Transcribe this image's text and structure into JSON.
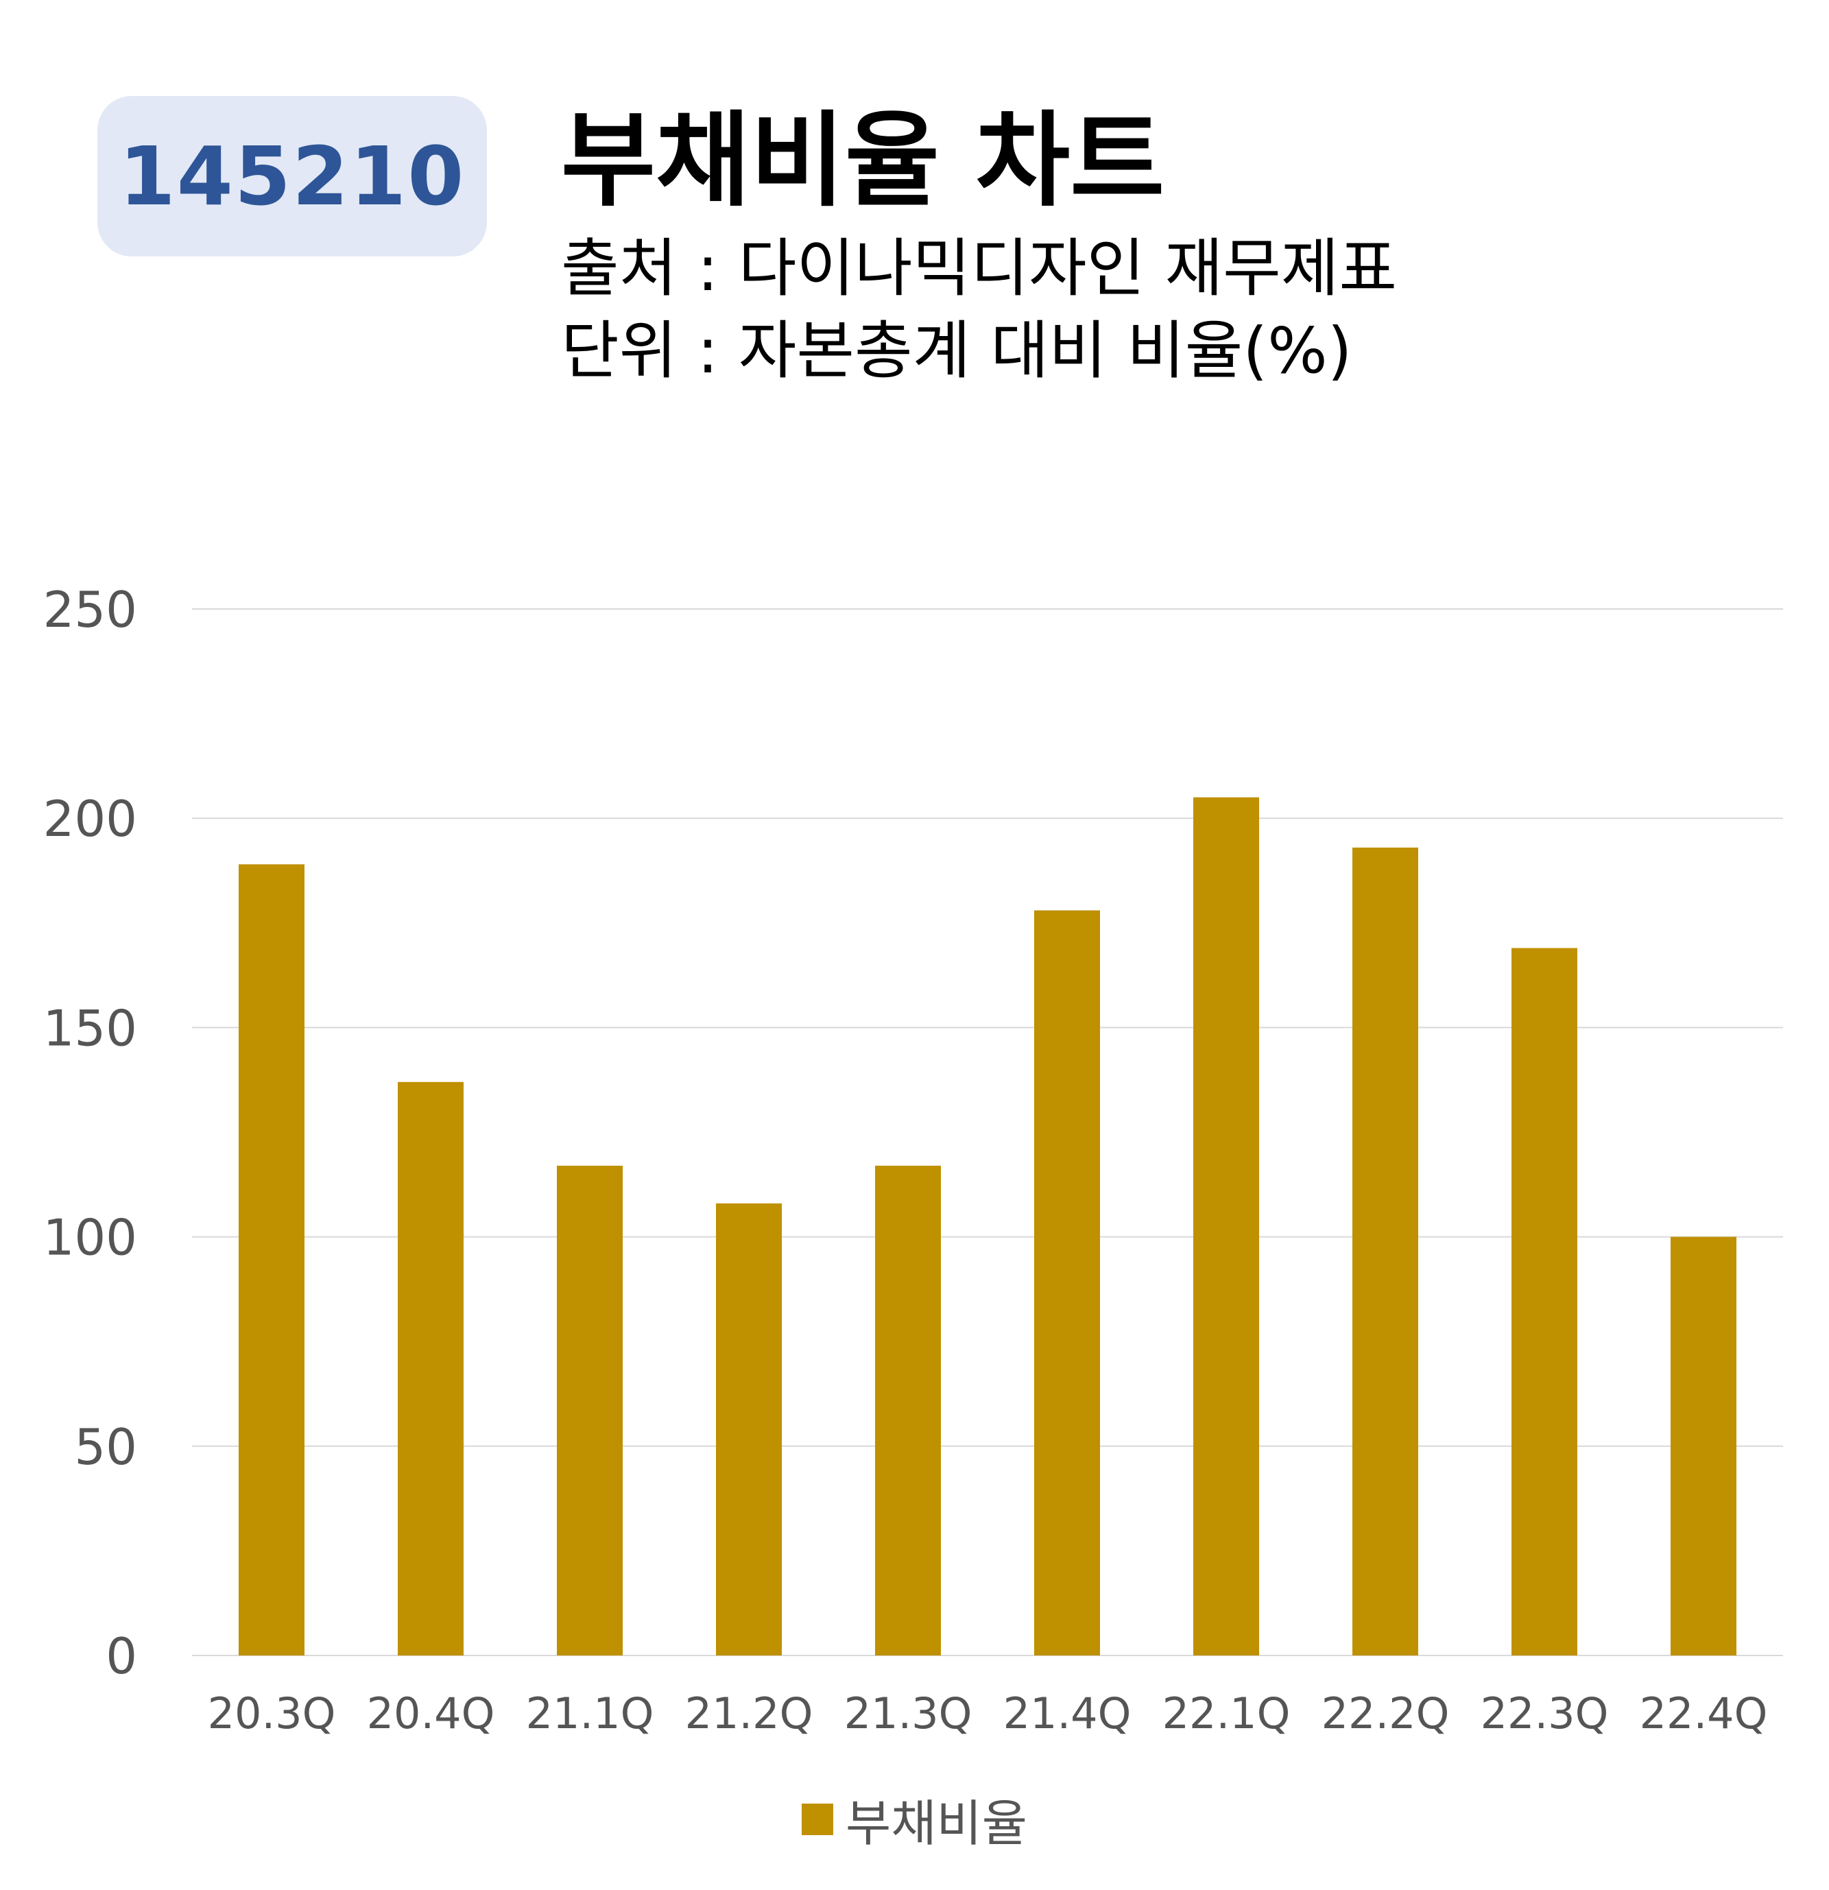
{
  "header": {
    "code": "145210",
    "title": "부채비율 차트",
    "source": "출처 : 다이나믹디자인 재무제표",
    "unit": "단위 : 자본총계 대비 비율(%)"
  },
  "colors": {
    "bar": "#bf9000",
    "badge_bg": "#e2e8f5",
    "badge_text": "#2e5597",
    "grid": "#d9d9d9",
    "tick_text": "#555555"
  },
  "chart_data": {
    "type": "bar",
    "categories": [
      "20.3Q",
      "20.4Q",
      "21.1Q",
      "21.2Q",
      "21.3Q",
      "21.4Q",
      "22.1Q",
      "22.2Q",
      "22.3Q",
      "22.4Q"
    ],
    "series": [
      {
        "name": "부채비율",
        "values": [
          189,
          137,
          117,
          108,
          117,
          178,
          205,
          193,
          169,
          100
        ]
      }
    ],
    "ylim": [
      0,
      250
    ],
    "yticks": [
      0,
      50,
      100,
      150,
      200,
      250
    ],
    "grid": true,
    "legend": "bottom"
  }
}
